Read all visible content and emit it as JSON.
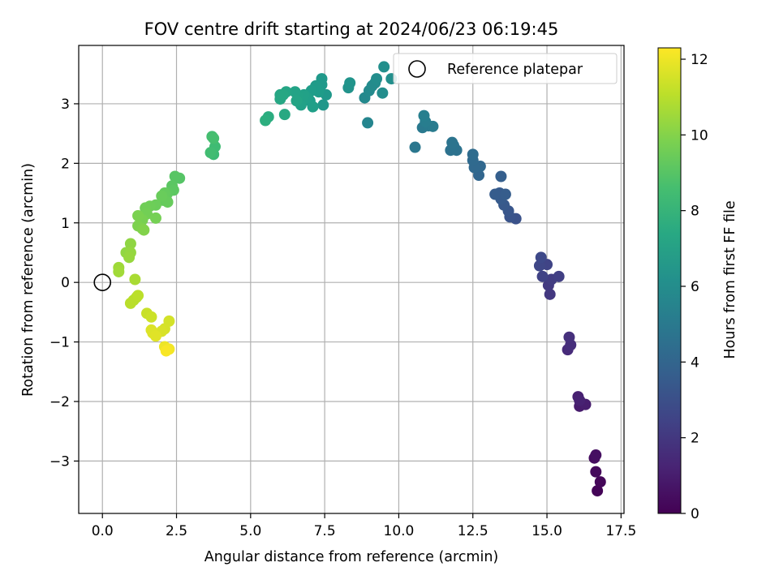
{
  "chart_data": {
    "type": "scatter",
    "title": "FOV centre drift starting at 2024/06/23 06:19:45",
    "xlabel": "Angular distance from reference (arcmin)",
    "ylabel": "Rotation from reference (arcmin)",
    "xlim": [
      -0.8,
      17.6
    ],
    "ylim": [
      -3.88,
      3.98
    ],
    "xticks": [
      0.0,
      2.5,
      5.0,
      7.5,
      10.0,
      12.5,
      15.0,
      17.5
    ],
    "xtick_labels": [
      "0.0",
      "2.5",
      "5.0",
      "7.5",
      "10.0",
      "12.5",
      "15.0",
      "17.5"
    ],
    "yticks": [
      -3,
      -2,
      -1,
      0,
      1,
      2,
      3
    ],
    "ytick_labels": [
      "−3",
      "−2",
      "−1",
      "0",
      "1",
      "2",
      "3"
    ],
    "grid": true,
    "legend": {
      "position": "top-right",
      "entries": [
        "Reference platepar"
      ]
    },
    "reference_point": {
      "x": 0,
      "y": 0
    },
    "colorbar": {
      "label": "Hours from first FF file",
      "min": 0,
      "max": 12.3,
      "ticks": [
        0,
        2,
        4,
        6,
        8,
        10,
        12
      ],
      "tick_labels": [
        "0",
        "2",
        "4",
        "6",
        "8",
        "10",
        "12"
      ],
      "colormap": "viridis"
    },
    "points": [
      {
        "x": 16.7,
        "y": -3.5,
        "h": 0.1
      },
      {
        "x": 16.8,
        "y": -3.35,
        "h": 0.2
      },
      {
        "x": 16.65,
        "y": -3.18,
        "h": 0.3
      },
      {
        "x": 16.6,
        "y": -2.95,
        "h": 0.4
      },
      {
        "x": 16.65,
        "y": -2.9,
        "h": 0.5
      },
      {
        "x": 16.1,
        "y": -2.08,
        "h": 0.9
      },
      {
        "x": 16.3,
        "y": -2.05,
        "h": 1.0
      },
      {
        "x": 16.05,
        "y": -1.92,
        "h": 1.1
      },
      {
        "x": 16.1,
        "y": -1.98,
        "h": 1.15
      },
      {
        "x": 15.7,
        "y": -1.13,
        "h": 1.5
      },
      {
        "x": 15.8,
        "y": -1.05,
        "h": 1.6
      },
      {
        "x": 15.75,
        "y": -0.92,
        "h": 1.7
      },
      {
        "x": 15.1,
        "y": -0.2,
        "h": 2.0
      },
      {
        "x": 15.05,
        "y": -0.05,
        "h": 2.1
      },
      {
        "x": 15.15,
        "y": 0.05,
        "h": 2.2
      },
      {
        "x": 15.4,
        "y": 0.1,
        "h": 2.3
      },
      {
        "x": 14.85,
        "y": 0.1,
        "h": 2.4
      },
      {
        "x": 15.0,
        "y": 0.3,
        "h": 2.5
      },
      {
        "x": 14.75,
        "y": 0.28,
        "h": 2.6
      },
      {
        "x": 14.8,
        "y": 0.42,
        "h": 2.7
      },
      {
        "x": 13.95,
        "y": 1.07,
        "h": 3.1
      },
      {
        "x": 13.75,
        "y": 1.1,
        "h": 3.2
      },
      {
        "x": 13.7,
        "y": 1.2,
        "h": 3.3
      },
      {
        "x": 13.55,
        "y": 1.3,
        "h": 3.4
      },
      {
        "x": 13.45,
        "y": 1.4,
        "h": 3.5
      },
      {
        "x": 13.4,
        "y": 1.5,
        "h": 3.5
      },
      {
        "x": 13.25,
        "y": 1.48,
        "h": 3.55
      },
      {
        "x": 13.6,
        "y": 1.48,
        "h": 3.6
      },
      {
        "x": 13.45,
        "y": 1.78,
        "h": 3.7
      },
      {
        "x": 12.7,
        "y": 1.8,
        "h": 4.0
      },
      {
        "x": 12.75,
        "y": 1.95,
        "h": 4.1
      },
      {
        "x": 12.55,
        "y": 1.93,
        "h": 4.15
      },
      {
        "x": 12.5,
        "y": 2.05,
        "h": 4.2
      },
      {
        "x": 12.5,
        "y": 2.15,
        "h": 4.3
      },
      {
        "x": 11.75,
        "y": 2.22,
        "h": 4.6
      },
      {
        "x": 11.95,
        "y": 2.22,
        "h": 4.65
      },
      {
        "x": 11.85,
        "y": 2.3,
        "h": 4.7
      },
      {
        "x": 11.8,
        "y": 2.35,
        "h": 4.75
      },
      {
        "x": 10.55,
        "y": 2.27,
        "h": 4.9
      },
      {
        "x": 10.8,
        "y": 2.6,
        "h": 5.0
      },
      {
        "x": 11.0,
        "y": 2.63,
        "h": 5.05
      },
      {
        "x": 11.15,
        "y": 2.62,
        "h": 5.1
      },
      {
        "x": 10.9,
        "y": 2.7,
        "h": 5.2
      },
      {
        "x": 10.85,
        "y": 2.8,
        "h": 5.3
      },
      {
        "x": 8.95,
        "y": 2.68,
        "h": 5.6
      },
      {
        "x": 8.85,
        "y": 3.1,
        "h": 5.8
      },
      {
        "x": 9.0,
        "y": 3.22,
        "h": 5.85
      },
      {
        "x": 9.1,
        "y": 3.3,
        "h": 5.9
      },
      {
        "x": 9.2,
        "y": 3.35,
        "h": 5.9
      },
      {
        "x": 9.25,
        "y": 3.42,
        "h": 6.0
      },
      {
        "x": 9.45,
        "y": 3.18,
        "h": 6.0
      },
      {
        "x": 9.5,
        "y": 3.62,
        "h": 6.1
      },
      {
        "x": 9.75,
        "y": 3.42,
        "h": 6.1
      },
      {
        "x": 8.3,
        "y": 3.27,
        "h": 6.3
      },
      {
        "x": 8.35,
        "y": 3.35,
        "h": 6.35
      },
      {
        "x": 7.45,
        "y": 2.98,
        "h": 6.5
      },
      {
        "x": 7.55,
        "y": 3.15,
        "h": 6.55
      },
      {
        "x": 7.4,
        "y": 3.32,
        "h": 6.6
      },
      {
        "x": 7.4,
        "y": 3.42,
        "h": 6.6
      },
      {
        "x": 7.2,
        "y": 3.3,
        "h": 6.7
      },
      {
        "x": 7.3,
        "y": 3.2,
        "h": 6.75
      },
      {
        "x": 7.05,
        "y": 3.22,
        "h": 6.8
      },
      {
        "x": 7.0,
        "y": 3.05,
        "h": 6.85
      },
      {
        "x": 7.1,
        "y": 2.95,
        "h": 6.9
      },
      {
        "x": 6.9,
        "y": 3.1,
        "h": 6.95
      },
      {
        "x": 6.8,
        "y": 3.15,
        "h": 7.0
      },
      {
        "x": 6.7,
        "y": 2.98,
        "h": 7.0
      },
      {
        "x": 6.6,
        "y": 3.12,
        "h": 7.05
      },
      {
        "x": 6.5,
        "y": 3.2,
        "h": 7.1
      },
      {
        "x": 6.55,
        "y": 3.05,
        "h": 7.15
      },
      {
        "x": 6.2,
        "y": 3.2,
        "h": 7.2
      },
      {
        "x": 6.0,
        "y": 3.15,
        "h": 7.25
      },
      {
        "x": 6.0,
        "y": 3.08,
        "h": 7.3
      },
      {
        "x": 6.1,
        "y": 3.15,
        "h": 7.35
      },
      {
        "x": 6.15,
        "y": 2.82,
        "h": 7.4
      },
      {
        "x": 5.6,
        "y": 2.78,
        "h": 7.6
      },
      {
        "x": 5.5,
        "y": 2.72,
        "h": 7.7
      },
      {
        "x": 3.75,
        "y": 2.15,
        "h": 8.4
      },
      {
        "x": 3.8,
        "y": 2.28,
        "h": 8.45
      },
      {
        "x": 3.65,
        "y": 2.18,
        "h": 8.5
      },
      {
        "x": 3.7,
        "y": 2.45,
        "h": 8.55
      },
      {
        "x": 3.75,
        "y": 2.42,
        "h": 8.6
      },
      {
        "x": 2.6,
        "y": 1.75,
        "h": 9.0
      },
      {
        "x": 2.45,
        "y": 1.78,
        "h": 9.05
      },
      {
        "x": 2.35,
        "y": 1.62,
        "h": 9.1
      },
      {
        "x": 2.4,
        "y": 1.55,
        "h": 9.15
      },
      {
        "x": 2.2,
        "y": 1.5,
        "h": 9.2
      },
      {
        "x": 2.15,
        "y": 1.4,
        "h": 9.25
      },
      {
        "x": 2.05,
        "y": 1.38,
        "h": 9.3
      },
      {
        "x": 2.1,
        "y": 1.5,
        "h": 9.35
      },
      {
        "x": 2.2,
        "y": 1.35,
        "h": 9.4
      },
      {
        "x": 2.0,
        "y": 1.45,
        "h": 9.45
      },
      {
        "x": 1.8,
        "y": 1.3,
        "h": 9.5
      },
      {
        "x": 1.6,
        "y": 1.28,
        "h": 9.55
      },
      {
        "x": 1.45,
        "y": 1.25,
        "h": 9.6
      },
      {
        "x": 1.5,
        "y": 1.15,
        "h": 9.65
      },
      {
        "x": 1.8,
        "y": 1.08,
        "h": 9.7
      },
      {
        "x": 1.35,
        "y": 1.05,
        "h": 9.75
      },
      {
        "x": 1.2,
        "y": 1.12,
        "h": 9.8
      },
      {
        "x": 1.2,
        "y": 0.95,
        "h": 9.85
      },
      {
        "x": 1.35,
        "y": 0.9,
        "h": 9.9
      },
      {
        "x": 1.4,
        "y": 0.88,
        "h": 9.95
      },
      {
        "x": 0.95,
        "y": 0.65,
        "h": 10.2
      },
      {
        "x": 0.8,
        "y": 0.5,
        "h": 10.25
      },
      {
        "x": 0.95,
        "y": 0.5,
        "h": 10.3
      },
      {
        "x": 0.9,
        "y": 0.42,
        "h": 10.35
      },
      {
        "x": 0.55,
        "y": 0.25,
        "h": 10.5
      },
      {
        "x": 0.55,
        "y": 0.18,
        "h": 10.55
      },
      {
        "x": 1.1,
        "y": 0.05,
        "h": 10.7
      },
      {
        "x": 1.15,
        "y": -0.25,
        "h": 10.9
      },
      {
        "x": 1.05,
        "y": -0.3,
        "h": 10.95
      },
      {
        "x": 0.95,
        "y": -0.35,
        "h": 11.0
      },
      {
        "x": 1.2,
        "y": -0.22,
        "h": 11.05
      },
      {
        "x": 1.5,
        "y": -0.52,
        "h": 11.3
      },
      {
        "x": 1.65,
        "y": -0.58,
        "h": 11.35
      },
      {
        "x": 2.25,
        "y": -0.65,
        "h": 11.5
      },
      {
        "x": 2.1,
        "y": -0.78,
        "h": 11.55
      },
      {
        "x": 2.0,
        "y": -0.82,
        "h": 11.6
      },
      {
        "x": 1.65,
        "y": -0.8,
        "h": 11.65
      },
      {
        "x": 1.7,
        "y": -0.85,
        "h": 11.7
      },
      {
        "x": 1.8,
        "y": -0.9,
        "h": 11.75
      },
      {
        "x": 2.1,
        "y": -1.08,
        "h": 12.0
      },
      {
        "x": 2.25,
        "y": -1.12,
        "h": 12.1
      },
      {
        "x": 2.15,
        "y": -1.15,
        "h": 12.2
      }
    ]
  }
}
